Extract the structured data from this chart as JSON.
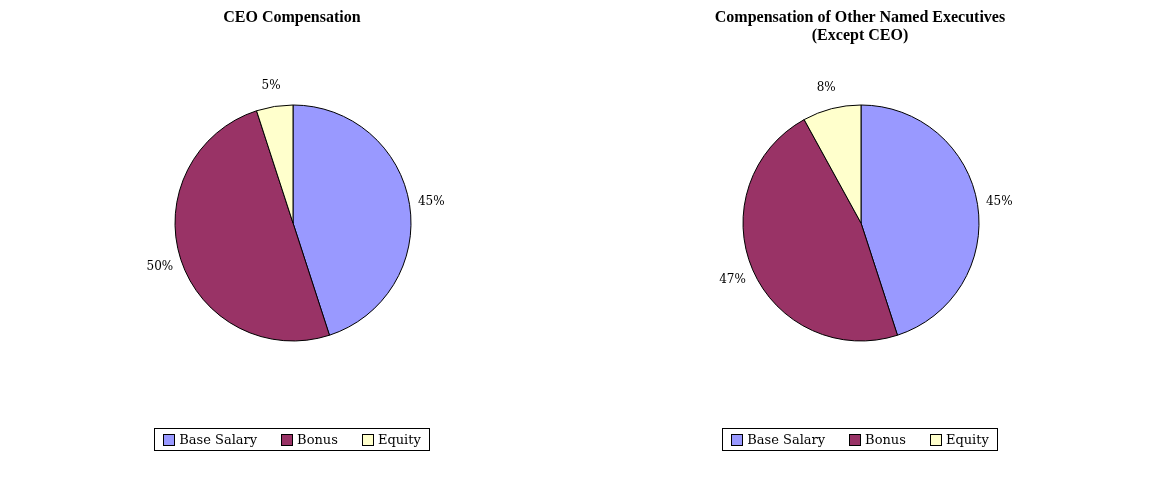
{
  "chart_data": [
    {
      "type": "pie",
      "title": "CEO Compensation",
      "categories": [
        "Base Salary",
        "Bonus",
        "Equity"
      ],
      "values": [
        45,
        50,
        5
      ],
      "colors": [
        "#9999ff",
        "#993366",
        "#ffffcc"
      ],
      "value_labels": [
        "45%",
        "50%",
        "5%"
      ],
      "legend": "bottom"
    },
    {
      "type": "pie",
      "title": "Compensation of Other Named Executives\n(Except CEO)",
      "categories": [
        "Base Salary",
        "Bonus",
        "Equity"
      ],
      "values": [
        45,
        47,
        8
      ],
      "colors": [
        "#9999ff",
        "#993366",
        "#ffffcc"
      ],
      "value_labels": [
        "45%",
        "47%",
        "8%"
      ],
      "legend": "bottom"
    }
  ]
}
